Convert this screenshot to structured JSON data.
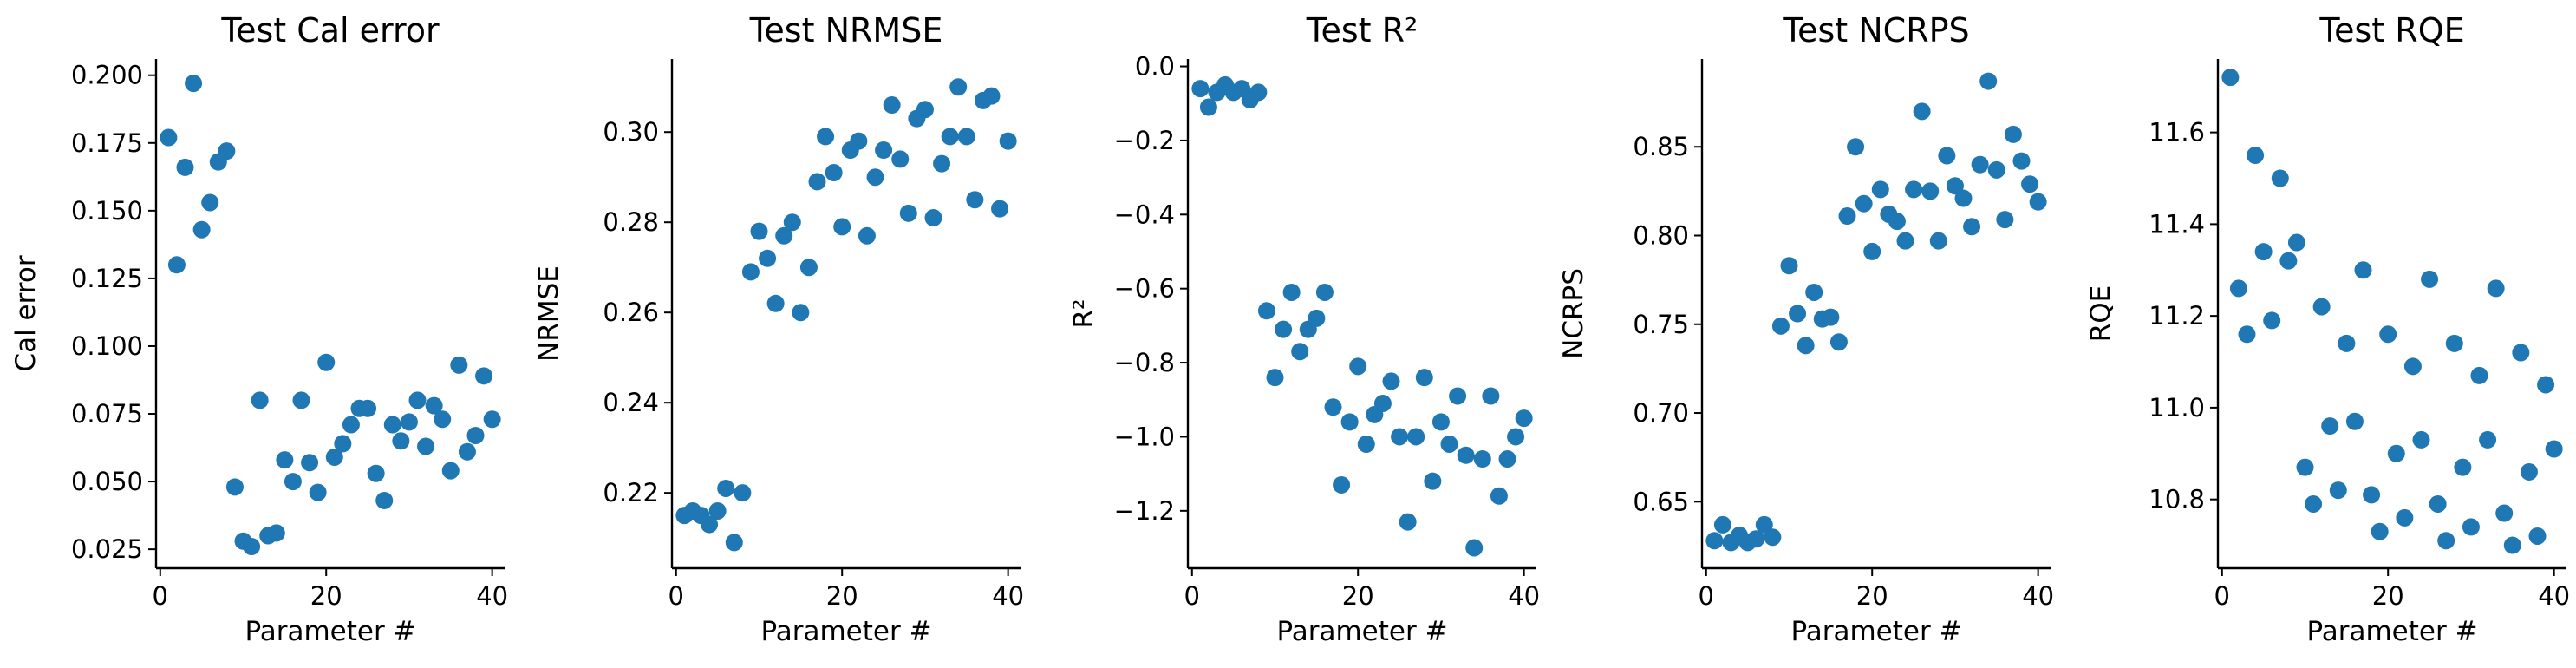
{
  "chart_data": [
    {
      "type": "scatter",
      "title": "Test Cal error",
      "xlabel": "Parameter #",
      "ylabel": "Cal error",
      "xlim": [
        -0.5,
        41.5
      ],
      "ylim": [
        0.018,
        0.206
      ],
      "xticks": [
        0,
        20,
        40
      ],
      "xtick_labels": [
        "0",
        "20",
        "40"
      ],
      "yticks": [
        0.025,
        0.05,
        0.075,
        0.1,
        0.125,
        0.15,
        0.175,
        0.2
      ],
      "ytick_labels": [
        "0.025",
        "0.050",
        "0.075",
        "0.100",
        "0.125",
        "0.150",
        "0.175",
        "0.200"
      ],
      "grid": false,
      "color": "#1f77b4",
      "x": [
        1,
        2,
        3,
        4,
        5,
        6,
        7,
        8,
        9,
        10,
        11,
        12,
        13,
        14,
        15,
        16,
        17,
        18,
        19,
        20,
        21,
        22,
        23,
        24,
        25,
        26,
        27,
        28,
        29,
        30,
        31,
        32,
        33,
        34,
        35,
        36,
        37,
        38,
        39,
        40
      ],
      "y": [
        0.177,
        0.13,
        0.166,
        0.197,
        0.143,
        0.153,
        0.168,
        0.172,
        0.048,
        0.028,
        0.026,
        0.08,
        0.03,
        0.031,
        0.058,
        0.05,
        0.08,
        0.057,
        0.046,
        0.094,
        0.059,
        0.064,
        0.071,
        0.077,
        0.077,
        0.053,
        0.043,
        0.071,
        0.065,
        0.072,
        0.08,
        0.063,
        0.078,
        0.073,
        0.054,
        0.093,
        0.061,
        0.067,
        0.089,
        0.073
      ]
    },
    {
      "type": "scatter",
      "title": "Test NRMSE",
      "xlabel": "Parameter #",
      "ylabel": "NRMSE",
      "xlim": [
        -0.5,
        41.5
      ],
      "ylim": [
        0.2033,
        0.3162
      ],
      "xticks": [
        0,
        20,
        40
      ],
      "xtick_labels": [
        "0",
        "20",
        "40"
      ],
      "yticks": [
        0.22,
        0.24,
        0.26,
        0.28,
        0.3
      ],
      "ytick_labels": [
        "0.22",
        "0.24",
        "0.26",
        "0.28",
        "0.30"
      ],
      "grid": false,
      "color": "#1f77b4",
      "x": [
        1,
        2,
        3,
        4,
        5,
        6,
        7,
        8,
        9,
        10,
        11,
        12,
        13,
        14,
        15,
        16,
        17,
        18,
        19,
        20,
        21,
        22,
        23,
        24,
        25,
        26,
        27,
        28,
        29,
        30,
        31,
        32,
        33,
        34,
        35,
        36,
        37,
        38,
        39,
        40
      ],
      "y": [
        0.215,
        0.216,
        0.215,
        0.213,
        0.216,
        0.221,
        0.209,
        0.22,
        0.269,
        0.278,
        0.272,
        0.262,
        0.277,
        0.28,
        0.26,
        0.27,
        0.289,
        0.299,
        0.291,
        0.279,
        0.296,
        0.298,
        0.277,
        0.29,
        0.296,
        0.306,
        0.294,
        0.282,
        0.303,
        0.305,
        0.281,
        0.293,
        0.299,
        0.31,
        0.299,
        0.285,
        0.307,
        0.308,
        0.283,
        0.298
      ]
    },
    {
      "type": "scatter",
      "title": "Test R²",
      "xlabel": "Parameter #",
      "ylabel": "R²",
      "xlim": [
        -0.5,
        41.5
      ],
      "ylim": [
        -1.355,
        0.02
      ],
      "xticks": [
        0,
        20,
        40
      ],
      "xtick_labels": [
        "0",
        "20",
        "40"
      ],
      "yticks": [
        0.0,
        -0.2,
        -0.4,
        -0.6,
        -0.8,
        -1.0,
        -1.2
      ],
      "ytick_labels": [
        "0.0",
        "−0.2",
        "−0.4",
        "−0.6",
        "−0.8",
        "−1.0",
        "−1.2"
      ],
      "grid": false,
      "color": "#1f77b4",
      "x": [
        1,
        2,
        3,
        4,
        5,
        6,
        7,
        8,
        9,
        10,
        11,
        12,
        13,
        14,
        15,
        16,
        17,
        18,
        19,
        20,
        21,
        22,
        23,
        24,
        25,
        26,
        27,
        28,
        29,
        30,
        31,
        32,
        33,
        34,
        35,
        36,
        37,
        38,
        39,
        40
      ],
      "y": [
        -0.06,
        -0.11,
        -0.07,
        -0.05,
        -0.07,
        -0.06,
        -0.09,
        -0.07,
        -0.66,
        -0.84,
        -0.71,
        -0.61,
        -0.77,
        -0.71,
        -0.68,
        -0.61,
        -0.92,
        -1.13,
        -0.96,
        -0.81,
        -1.02,
        -0.94,
        -0.91,
        -0.85,
        -1.0,
        -1.23,
        -1.0,
        -0.84,
        -1.12,
        -0.96,
        -1.02,
        -0.89,
        -1.05,
        -1.3,
        -1.06,
        -0.89,
        -1.16,
        -1.06,
        -1.0,
        -0.95
      ]
    },
    {
      "type": "scatter",
      "title": "Test NCRPS",
      "xlabel": "Parameter #",
      "ylabel": "NCRPS",
      "xlim": [
        -0.5,
        41.5
      ],
      "ylim": [
        0.6125,
        0.8995
      ],
      "xticks": [
        0,
        20,
        40
      ],
      "xtick_labels": [
        "0",
        "20",
        "40"
      ],
      "yticks": [
        0.65,
        0.7,
        0.75,
        0.8,
        0.85
      ],
      "ytick_labels": [
        "0.65",
        "0.70",
        "0.75",
        "0.80",
        "0.85"
      ],
      "grid": false,
      "color": "#1f77b4",
      "x": [
        1,
        2,
        3,
        4,
        5,
        6,
        7,
        8,
        9,
        10,
        11,
        12,
        13,
        14,
        15,
        16,
        17,
        18,
        19,
        20,
        21,
        22,
        23,
        24,
        25,
        26,
        27,
        28,
        29,
        30,
        31,
        32,
        33,
        34,
        35,
        36,
        37,
        38,
        39,
        40
      ],
      "y": [
        0.628,
        0.637,
        0.627,
        0.631,
        0.627,
        0.629,
        0.637,
        0.63,
        0.749,
        0.783,
        0.756,
        0.738,
        0.768,
        0.753,
        0.754,
        0.74,
        0.811,
        0.85,
        0.818,
        0.791,
        0.826,
        0.812,
        0.808,
        0.797,
        0.826,
        0.87,
        0.825,
        0.797,
        0.845,
        0.828,
        0.821,
        0.805,
        0.84,
        0.887,
        0.837,
        0.809,
        0.857,
        0.842,
        0.829,
        0.819
      ]
    },
    {
      "type": "scatter",
      "title": "Test RQE",
      "xlabel": "Parameter #",
      "ylabel": "RQE",
      "xlim": [
        -0.5,
        41.5
      ],
      "ylim": [
        10.65,
        11.76
      ],
      "xticks": [
        0,
        20,
        40
      ],
      "xtick_labels": [
        "0",
        "20",
        "40"
      ],
      "yticks": [
        10.8,
        11.0,
        11.2,
        11.4,
        11.6
      ],
      "ytick_labels": [
        "10.8",
        "11.0",
        "11.2",
        "11.4",
        "11.6"
      ],
      "grid": false,
      "color": "#1f77b4",
      "x": [
        1,
        2,
        3,
        4,
        5,
        6,
        7,
        8,
        9,
        10,
        11,
        12,
        13,
        14,
        15,
        16,
        17,
        18,
        19,
        20,
        21,
        22,
        23,
        24,
        25,
        26,
        27,
        28,
        29,
        30,
        31,
        32,
        33,
        34,
        35,
        36,
        37,
        38,
        39,
        40
      ],
      "y": [
        11.72,
        11.26,
        11.16,
        11.55,
        11.34,
        11.19,
        11.5,
        11.32,
        11.36,
        10.87,
        10.79,
        11.22,
        10.96,
        10.82,
        11.14,
        10.97,
        11.3,
        10.81,
        10.73,
        11.16,
        10.9,
        10.76,
        11.09,
        10.93,
        11.28,
        10.79,
        10.71,
        11.14,
        10.87,
        10.74,
        11.07,
        10.93,
        11.26,
        10.77,
        10.7,
        11.12,
        10.86,
        10.72,
        11.05,
        10.91
      ]
    }
  ]
}
